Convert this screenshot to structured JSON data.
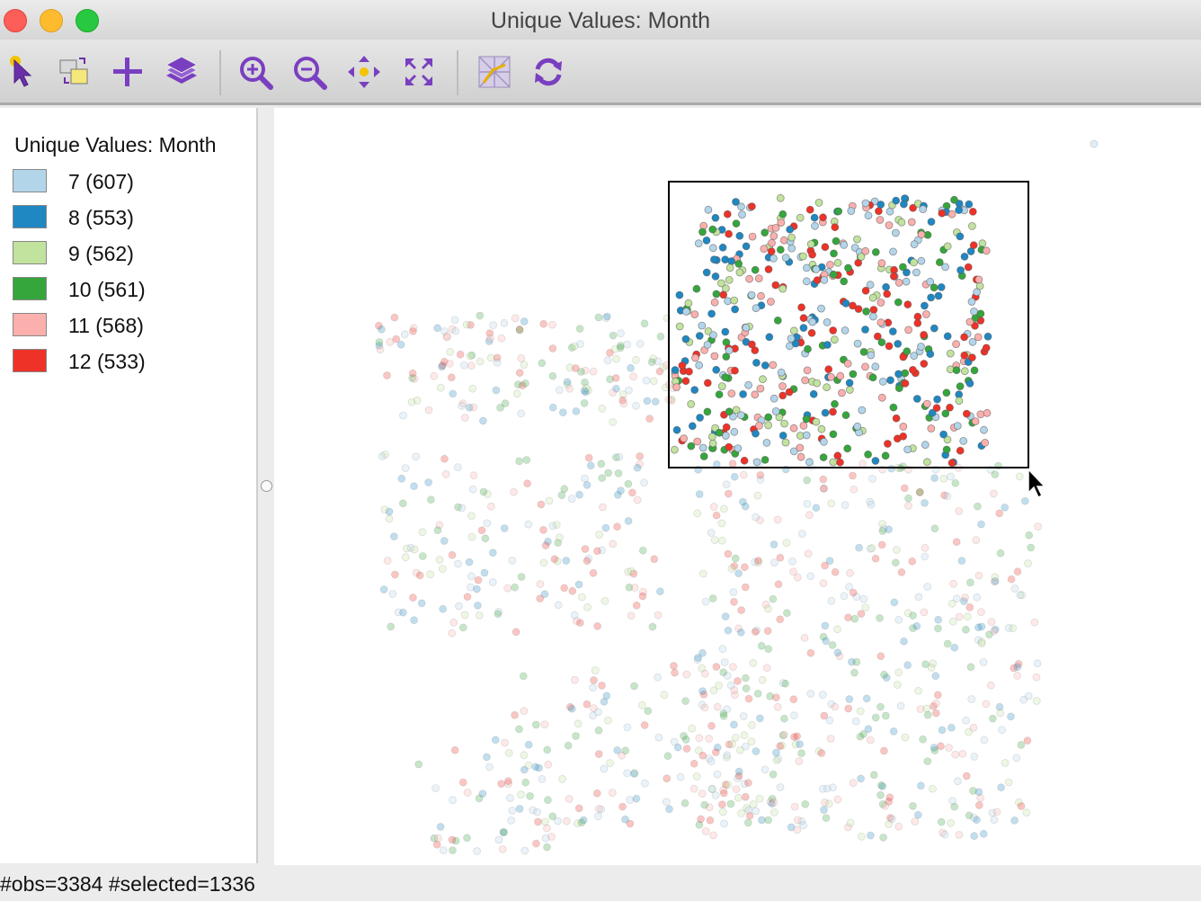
{
  "window": {
    "title": "Unique Values: Month"
  },
  "toolbar": {
    "tools": [
      {
        "name": "select-tool",
        "icon": "pointer-icon"
      },
      {
        "name": "selection-shape-tool",
        "icon": "selection-shape-icon"
      },
      {
        "name": "add-layer-tool",
        "icon": "plus-icon"
      },
      {
        "name": "layers-tool",
        "icon": "layers-icon"
      },
      {
        "name": "zoom-in-tool",
        "icon": "zoom-in-icon"
      },
      {
        "name": "zoom-out-icon-tool",
        "icon": "zoom-out-icon"
      },
      {
        "name": "pan-tool",
        "icon": "pan-icon"
      },
      {
        "name": "full-extent-tool",
        "icon": "full-extent-icon"
      },
      {
        "name": "basemap-tool",
        "icon": "basemap-icon"
      },
      {
        "name": "refresh-tool",
        "icon": "refresh-icon"
      }
    ]
  },
  "legend": {
    "title": "Unique Values: Month",
    "items": [
      {
        "label": "7 (607)",
        "color": "#b3d5ea"
      },
      {
        "label": "8 (553)",
        "color": "#1f87c2"
      },
      {
        "label": "9 (562)",
        "color": "#c2e39e"
      },
      {
        "label": "10 (561)",
        "color": "#35a63c"
      },
      {
        "label": "11 (568)",
        "color": "#fbb0ad"
      },
      {
        "label": "12 (533)",
        "color": "#ee3228"
      }
    ]
  },
  "map": {
    "selection_active": true
  },
  "status": {
    "text": "#obs=3384 #selected=1336"
  }
}
